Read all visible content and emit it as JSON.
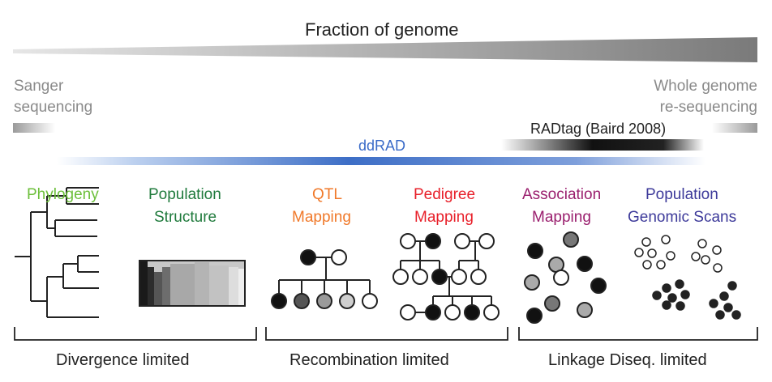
{
  "header": {
    "fraction_label": "Fraction of genome"
  },
  "ends": {
    "left": [
      "Sanger",
      "sequencing"
    ],
    "right": [
      "Whole genome",
      "re-sequencing"
    ]
  },
  "bars": {
    "ddrad_label": "ddRAD",
    "radtag_label": "RADtag  (Baird 2008)"
  },
  "applications": [
    {
      "lines": [
        "Phylogeny"
      ],
      "color": "#6cbf3a"
    },
    {
      "lines": [
        "Population",
        "Structure"
      ],
      "color": "#1f7a3c"
    },
    {
      "lines": [
        "QTL",
        "Mapping"
      ],
      "color": "#f0792a"
    },
    {
      "lines": [
        "Pedigree",
        "Mapping"
      ],
      "color": "#e8202a"
    },
    {
      "lines": [
        "Association",
        "Mapping"
      ],
      "color": "#9a1f6e"
    },
    {
      "lines": [
        "Population",
        "Genomic Scans"
      ],
      "color": "#3d3a9a"
    }
  ],
  "limits": [
    "Divergence limited",
    "Recombination limited",
    "Linkage Diseq. limited"
  ],
  "colors": {
    "ddrad_blue": "#3a6bc8",
    "text_grey": "#8a8a8a",
    "label_dark": "#222222",
    "wedge_grey": "#888888"
  }
}
